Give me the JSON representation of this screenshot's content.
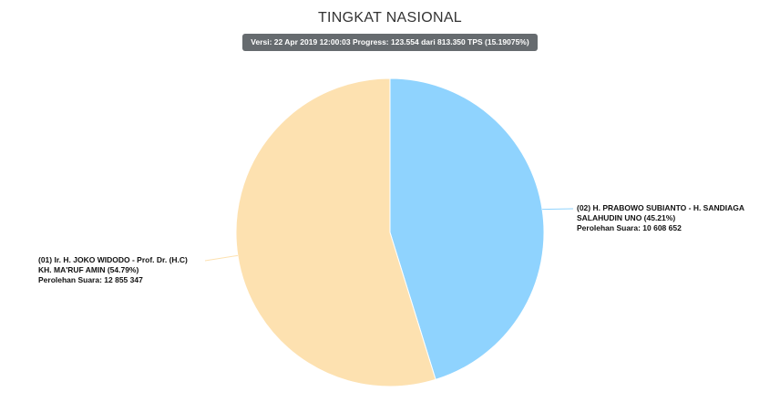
{
  "chart_data": {
    "type": "pie",
    "title": "TINGKAT NASIONAL",
    "subtitle": "Versi: 22 Apr 2019 12:00:03 Progress: 123.554 dari 813.350 TPS (15.19075%)",
    "slices": [
      {
        "label": "(01) Ir. H. JOKO WIDODO - Prof. Dr. (H.C) KH. MA'RUF AMIN",
        "label_lines": [
          "(01) Ir. H. JOKO WIDODO - Prof. Dr. (H.C)",
          "KH. MA'RUF AMIN (54.79%)",
          "Perolehan Suara: 12 855 347"
        ],
        "percent": 54.79,
        "votes": 12855347,
        "color": "#fde1b0"
      },
      {
        "label": "(02) H. PRABOWO SUBIANTO - H. SANDIAGA SALAHUDIN UNO",
        "label_lines": [
          "(02) H. PRABOWO SUBIANTO - H. SANDIAGA",
          "SALAHUDIN UNO (45.21%)",
          "Perolehan Suara: 10 608 652"
        ],
        "percent": 45.21,
        "votes": 10608652,
        "color": "#8fd3fe"
      }
    ]
  }
}
